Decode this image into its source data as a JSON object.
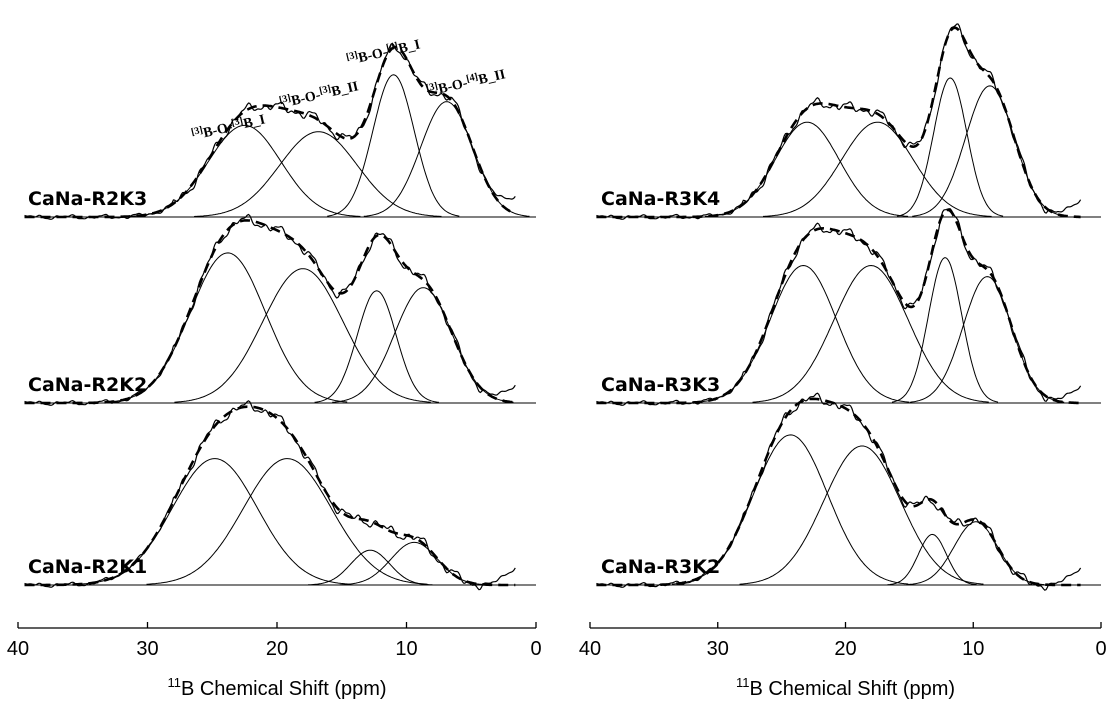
{
  "chart_data": [
    {
      "type": "line",
      "xlabel_prefix": "11",
      "xlabel": "B Chemical Shift (ppm)",
      "xlim": [
        40,
        0
      ],
      "xticks": [
        40,
        30,
        20,
        10,
        0
      ],
      "panels": [
        {
          "label": "CaNa-R2K3",
          "peaks": [
            {
              "name": "[3]B-O-[3]B_I",
              "center": 22.5,
              "amp": 0.58,
              "width": 2.8
            },
            {
              "name": "[3]B-O-[3]B_II",
              "center": 16.8,
              "amp": 0.54,
              "width": 3.0
            },
            {
              "name": "[3]B-O-[4]B_I",
              "center": 11.0,
              "amp": 0.9,
              "width": 1.6
            },
            {
              "name": "[3]B-O-[4]B_II",
              "center": 6.9,
              "amp": 0.73,
              "width": 2.0
            }
          ]
        },
        {
          "label": "CaNa-R2K2",
          "peaks": [
            {
              "name": "[3]B-O-[3]B_I",
              "center": 23.8,
              "amp": 0.95,
              "width": 2.9
            },
            {
              "name": "[3]B-O-[3]B_II",
              "center": 18.0,
              "amp": 0.85,
              "width": 3.1
            },
            {
              "name": "[3]B-O-[4]B_I",
              "center": 12.3,
              "amp": 0.71,
              "width": 1.5
            },
            {
              "name": "[3]B-O-[4]B_II",
              "center": 8.7,
              "amp": 0.73,
              "width": 2.2
            }
          ]
        },
        {
          "label": "CaNa-R2K1",
          "peaks": [
            {
              "name": "[3]B-O-[3]B_I",
              "center": 24.8,
              "amp": 0.8,
              "width": 3.3
            },
            {
              "name": "[3]B-O-[3]B_II",
              "center": 19.2,
              "amp": 0.8,
              "width": 3.4
            },
            {
              "name": "[3]B-O-[4]B_I",
              "center": 12.8,
              "amp": 0.22,
              "width": 1.5
            },
            {
              "name": "[3]B-O-[4]B_II",
              "center": 9.4,
              "amp": 0.27,
              "width": 1.8
            }
          ]
        }
      ]
    },
    {
      "type": "line",
      "xlabel_prefix": "11",
      "xlabel": "B Chemical Shift (ppm)",
      "xlim": [
        40,
        0
      ],
      "xticks": [
        40,
        30,
        20,
        10,
        0
      ],
      "panels": [
        {
          "label": "CaNa-R3K4",
          "peaks": [
            {
              "name": "[3]B-O-[3]B_I",
              "center": 23.0,
              "amp": 0.6,
              "width": 2.5
            },
            {
              "name": "[3]B-O-[3]B_II",
              "center": 17.5,
              "amp": 0.6,
              "width": 2.8
            },
            {
              "name": "[3]B-O-[4]B_I",
              "center": 11.8,
              "amp": 0.88,
              "width": 1.3
            },
            {
              "name": "[3]B-O-[4]B_II",
              "center": 8.7,
              "amp": 0.83,
              "width": 1.9
            }
          ]
        },
        {
          "label": "CaNa-R3K3",
          "peaks": [
            {
              "name": "[3]B-O-[3]B_I",
              "center": 23.3,
              "amp": 0.87,
              "width": 2.6
            },
            {
              "name": "[3]B-O-[3]B_II",
              "center": 18.0,
              "amp": 0.87,
              "width": 2.9
            },
            {
              "name": "[3]B-O-[4]B_I",
              "center": 12.2,
              "amp": 0.92,
              "width": 1.3
            },
            {
              "name": "[3]B-O-[4]B_II",
              "center": 8.9,
              "amp": 0.8,
              "width": 1.9
            }
          ]
        },
        {
          "label": "CaNa-R3K2",
          "peaks": [
            {
              "name": "[3]B-O-[3]B_I",
              "center": 24.3,
              "amp": 0.95,
              "width": 2.9
            },
            {
              "name": "[3]B-O-[3]B_II",
              "center": 18.7,
              "amp": 0.88,
              "width": 3.0
            },
            {
              "name": "[3]B-O-[4]B_I",
              "center": 13.2,
              "amp": 0.32,
              "width": 1.1
            },
            {
              "name": "[3]B-O-[4]B_II",
              "center": 9.8,
              "amp": 0.4,
              "width": 1.7
            }
          ]
        }
      ]
    }
  ],
  "annotations": {
    "a1": {
      "sup1": "[3]",
      "t1": "B-O-",
      "sup2": "[3]",
      "t2": "B_I"
    },
    "a2": {
      "sup1": "[3]",
      "t1": "B-O-",
      "sup2": "[3]",
      "t2": "B_II"
    },
    "a3": {
      "sup1": "[3]",
      "t1": "B-O-",
      "sup2": "[4]",
      "t2": "B_I"
    },
    "a4": {
      "sup1": "[3]",
      "t1": "B-O-",
      "sup2": "[4]",
      "t2": "B_II"
    }
  }
}
